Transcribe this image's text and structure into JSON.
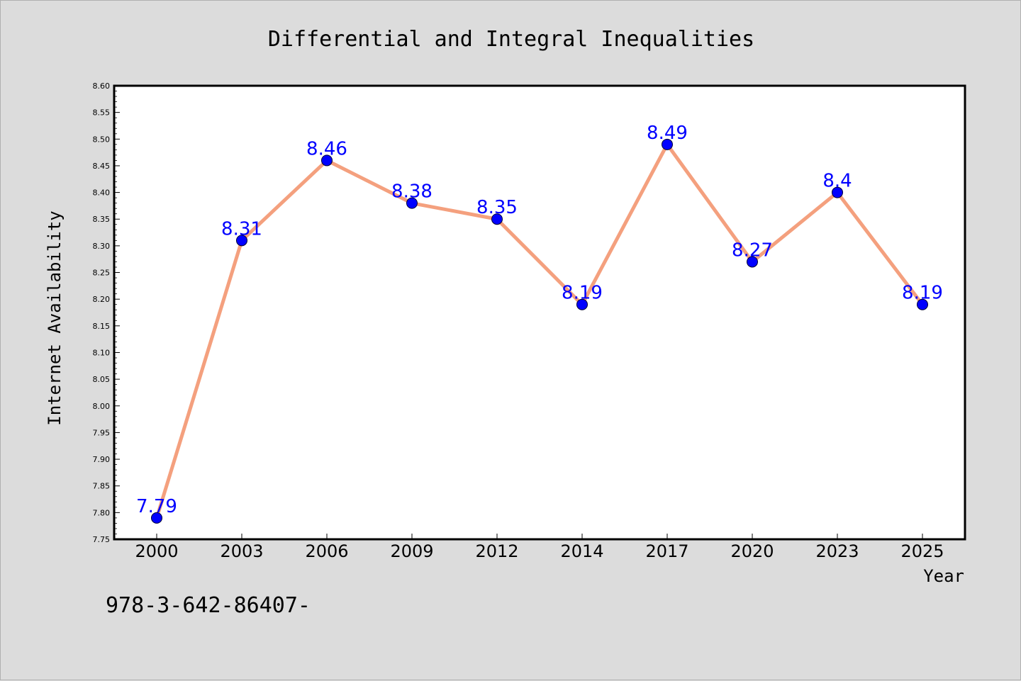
{
  "chart_data": {
    "type": "line",
    "title": "Differential and Integral Inequalities",
    "xlabel": "Year",
    "ylabel": "Internet Availability",
    "categories": [
      "2000",
      "2003",
      "2006",
      "2009",
      "2012",
      "2014",
      "2017",
      "2020",
      "2023",
      "2025"
    ],
    "series": [
      {
        "values": [
          7.79,
          8.31,
          8.46,
          8.38,
          8.35,
          8.19,
          8.49,
          8.27,
          8.4,
          8.19
        ],
        "labels": [
          "7.79",
          "8.31",
          "8.46",
          "8.38",
          "8.35",
          "8.19",
          "8.49",
          "8.27",
          "8.4",
          "8.19"
        ]
      }
    ],
    "ylim": [
      7.75,
      8.6
    ],
    "yticks": [
      "7.75",
      "7.80",
      "7.85",
      "7.90",
      "7.95",
      "8.00",
      "8.05",
      "8.10",
      "8.15",
      "8.20",
      "8.25",
      "8.30",
      "8.35",
      "8.40",
      "8.45",
      "8.50",
      "8.55",
      "8.60"
    ],
    "grid": false,
    "legend": "none",
    "colors": {
      "line": "#f4a07e",
      "marker": "#0000ff",
      "marker_edge": "#000033",
      "data_label": "#0000ff",
      "plot_background": "#ffffff",
      "figure_background": "#dcdcdc"
    }
  },
  "footer": {
    "text": "978-3-642-86407-"
  }
}
